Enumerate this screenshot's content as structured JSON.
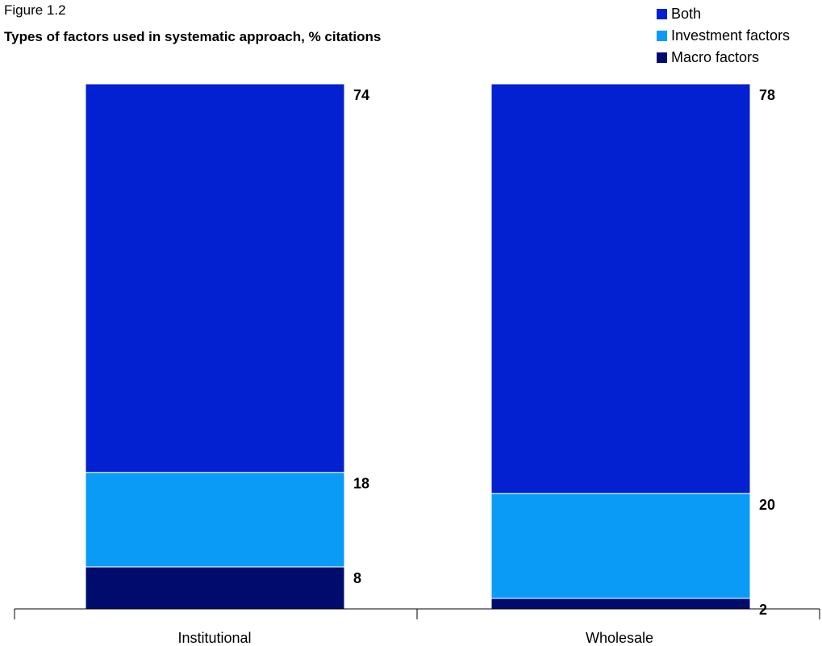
{
  "figure_label": "Figure 1.2",
  "title": "Types of factors used in systematic approach, % citations",
  "colors": {
    "Both": "#0320d1",
    "Investment factors": "#0a9bf7",
    "Macro factors": "#000b6e"
  },
  "legend": [
    "Both",
    "Investment factors",
    "Macro factors"
  ],
  "chart_data": {
    "type": "bar",
    "stacked": true,
    "categories": [
      "Institutional",
      "Wholesale"
    ],
    "series": [
      {
        "name": "Macro factors",
        "values": [
          8,
          2
        ]
      },
      {
        "name": "Investment factors",
        "values": [
          18,
          20
        ]
      },
      {
        "name": "Both",
        "values": [
          74,
          78
        ]
      }
    ],
    "title": "Types of factors used in systematic approach, % citations",
    "xlabel": "",
    "ylabel": "",
    "ylim": [
      0,
      100
    ],
    "grid": false,
    "legend_position": "top-right"
  }
}
